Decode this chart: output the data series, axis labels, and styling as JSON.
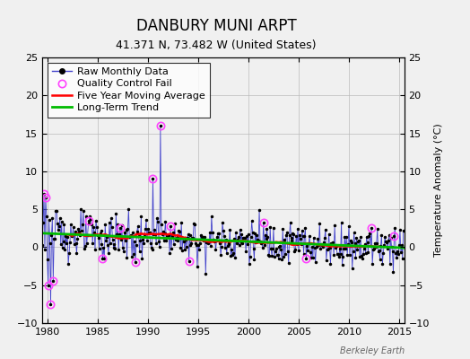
{
  "title": "DANBURY MUNI ARPT",
  "subtitle": "41.371 N, 73.482 W (United States)",
  "ylabel": "Temperature Anomaly (°C)",
  "xlabel_note": "Berkeley Earth",
  "xlim": [
    1979.5,
    2015.5
  ],
  "ylim": [
    -10,
    25
  ],
  "yticks": [
    -10,
    -5,
    0,
    5,
    10,
    15,
    20,
    25
  ],
  "xticks": [
    1980,
    1985,
    1990,
    1995,
    2000,
    2005,
    2010,
    2015
  ],
  "raw_line_color": "#4444cc",
  "marker_color": "#000000",
  "qc_color": "#ff44ff",
  "ma_color": "#ff0000",
  "trend_color": "#00bb00",
  "background_color": "#f0f0f0",
  "grid_color": "#bbbbbb",
  "title_fontsize": 12,
  "subtitle_fontsize": 9,
  "legend_fontsize": 8,
  "tick_fontsize": 8,
  "ylabel_fontsize": 8,
  "seed": 123
}
